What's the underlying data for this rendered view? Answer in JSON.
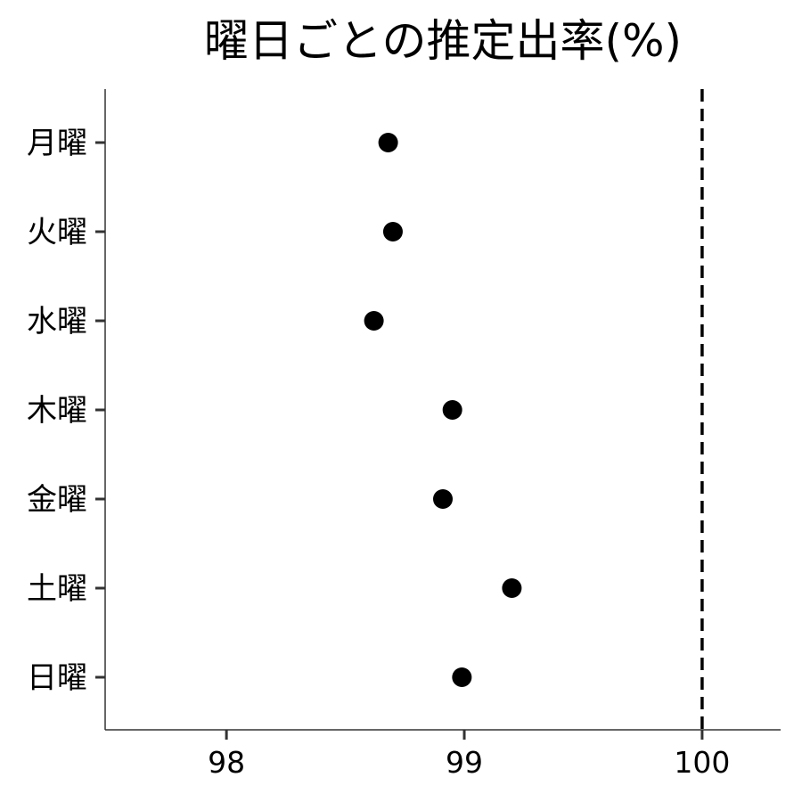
{
  "chart_data": {
    "type": "scatter",
    "title": "曜日ごとの推定出率(%)",
    "xlabel": "",
    "ylabel": "",
    "categories": [
      "月曜",
      "火曜",
      "水曜",
      "木曜",
      "金曜",
      "土曜",
      "日曜"
    ],
    "values": [
      98.68,
      98.7,
      98.62,
      98.95,
      98.91,
      99.2,
      98.99
    ],
    "xlim": [
      97.49,
      100.33
    ],
    "xticks": [
      98,
      99,
      100
    ],
    "xtick_labels": [
      "98",
      "99",
      "100"
    ],
    "reference_line": {
      "x": 100,
      "style": "dashed"
    },
    "grid": false,
    "legend": "none",
    "colors": {
      "point": "#000000",
      "axis": "#333333",
      "reference_line": "#000000"
    }
  }
}
